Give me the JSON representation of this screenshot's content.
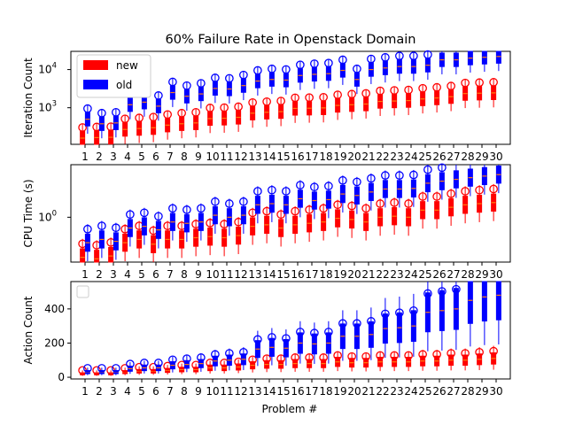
{
  "title": "60% Failure Rate in Openstack Domain",
  "xlabel": "Problem #",
  "colors": {
    "new": "#ff0000",
    "old": "#0000ff",
    "median": "#ff7f0e"
  },
  "legend": {
    "placement": "upper-left",
    "entries": [
      "new",
      "old"
    ]
  },
  "chart_data": [
    {
      "type": "box",
      "ylabel": "Iteration Count",
      "yscale": "log",
      "ylim": [
        110,
        30000
      ],
      "yticks": [
        {
          "value": 1000,
          "base": "10",
          "exp": "3"
        },
        {
          "value": 10000,
          "base": "10",
          "exp": "4"
        }
      ],
      "categories": [
        "1",
        "2",
        "3",
        "4",
        "5",
        "6",
        "7",
        "8",
        "9",
        "10",
        "11",
        "12",
        "13",
        "14",
        "15",
        "16",
        "17",
        "18",
        "19",
        "20",
        "21",
        "22",
        "23",
        "24",
        "25",
        "26",
        "27",
        "28",
        "29",
        "30"
      ],
      "series": [
        {
          "name": "new",
          "median": [
            160,
            165,
            168,
            270,
            285,
            300,
            350,
            380,
            400,
            520,
            530,
            560,
            720,
            760,
            790,
            960,
            970,
            990,
            1150,
            1200,
            1250,
            1460,
            1500,
            1540,
            1700,
            1800,
            1950,
            2350,
            2400,
            2450
          ]
        },
        {
          "name": "old",
          "median": [
            500,
            380,
            400,
            1200,
            1400,
            1100,
            2500,
            2000,
            2300,
            3200,
            3100,
            3800,
            5000,
            5500,
            5300,
            7000,
            7500,
            7800,
            9500,
            5500,
            10000,
            11000,
            12000,
            12000,
            13000,
            18000,
            18000,
            20000,
            21000,
            22000
          ]
        }
      ]
    },
    {
      "type": "box",
      "ylabel": "CPU Time (s)",
      "yscale": "log",
      "ylim": [
        0.12,
        12
      ],
      "yticks": [
        {
          "value": 1,
          "base": "10",
          "exp": "0"
        }
      ],
      "categories": [
        "1",
        "2",
        "3",
        "4",
        "5",
        "6",
        "7",
        "8",
        "9",
        "10",
        "11",
        "12",
        "13",
        "14",
        "15",
        "16",
        "17",
        "18",
        "19",
        "20",
        "21",
        "22",
        "23",
        "24",
        "25",
        "26",
        "27",
        "28",
        "29",
        "30"
      ],
      "series": [
        {
          "name": "new",
          "median": [
            0.15,
            0.14,
            0.16,
            0.3,
            0.35,
            0.28,
            0.35,
            0.35,
            0.38,
            0.4,
            0.38,
            0.42,
            0.65,
            0.7,
            0.6,
            0.7,
            0.75,
            0.8,
            0.95,
            0.9,
            0.8,
            1.0,
            1.05,
            1.0,
            1.4,
            1.4,
            1.6,
            1.8,
            1.9,
            2.0
          ]
        },
        {
          "name": "old",
          "median": [
            0.3,
            0.35,
            0.32,
            0.6,
            0.65,
            0.55,
            0.8,
            0.75,
            0.8,
            1.1,
            1.0,
            1.1,
            1.8,
            1.9,
            1.8,
            2.4,
            2.2,
            2.3,
            3.0,
            2.8,
            3.3,
            3.8,
            3.8,
            3.9,
            5.0,
            5.5,
            6.0,
            6.5,
            7.0,
            7.5
          ]
        }
      ]
    },
    {
      "type": "box",
      "ylabel": "Action Count",
      "yscale": "linear",
      "ylim": [
        -10,
        560
      ],
      "yticks": [
        {
          "value": 0,
          "label": "0"
        },
        {
          "value": 200,
          "label": "200"
        },
        {
          "value": 400,
          "label": "400"
        }
      ],
      "xlabel": "Problem #",
      "categories": [
        "1",
        "2",
        "3",
        "4",
        "5",
        "6",
        "7",
        "8",
        "9",
        "10",
        "11",
        "12",
        "13",
        "14",
        "15",
        "16",
        "17",
        "18",
        "19",
        "20",
        "21",
        "22",
        "23",
        "24",
        "25",
        "26",
        "27",
        "28",
        "29",
        "30"
      ],
      "series": [
        {
          "name": "new",
          "median": [
            20,
            20,
            20,
            30,
            35,
            35,
            40,
            45,
            45,
            55,
            55,
            60,
            70,
            75,
            75,
            80,
            80,
            80,
            90,
            85,
            85,
            90,
            90,
            90,
            95,
            95,
            100,
            100,
            105,
            110
          ]
        },
        {
          "name": "old",
          "median": [
            30,
            30,
            30,
            50,
            55,
            55,
            70,
            75,
            80,
            95,
            100,
            105,
            165,
            175,
            170,
            200,
            195,
            200,
            240,
            240,
            250,
            285,
            290,
            300,
            380,
            390,
            400,
            450,
            470,
            480
          ]
        }
      ]
    }
  ]
}
